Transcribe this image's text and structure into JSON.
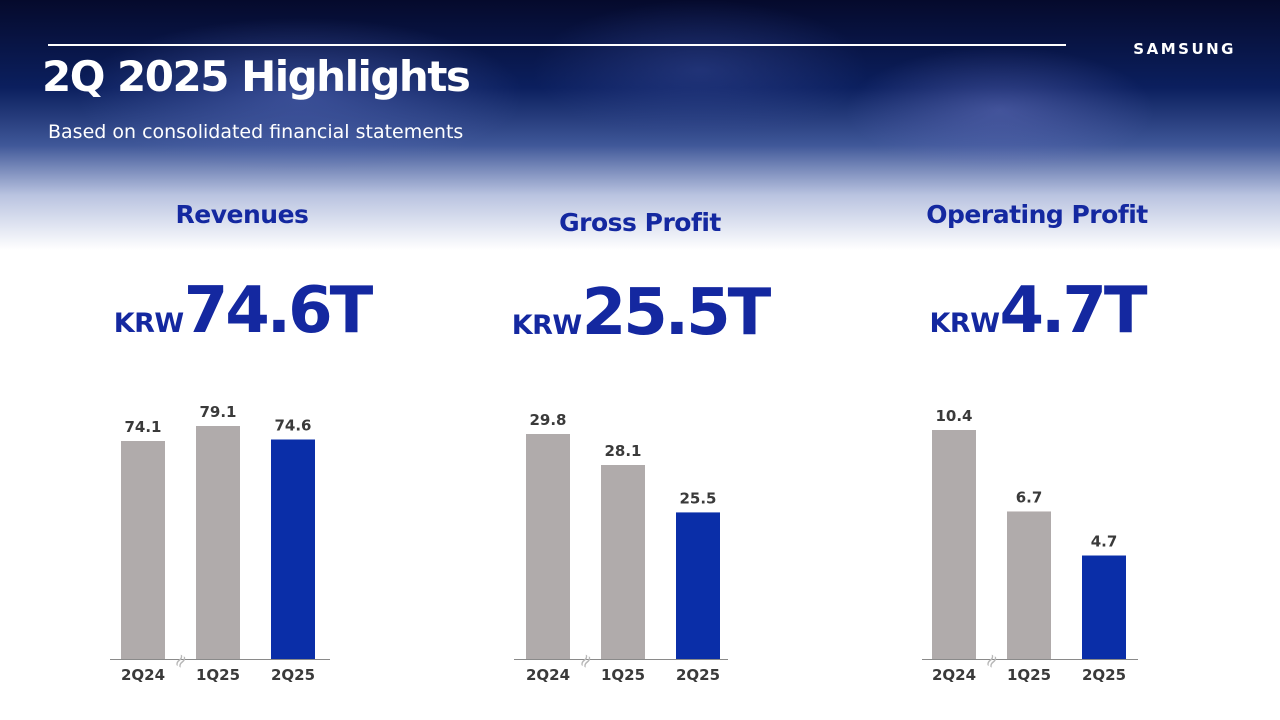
{
  "header": {
    "title": "2Q 2025 Highlights",
    "subtitle": "Based on consolidated financial statements",
    "logo": "SAMSUNG"
  },
  "colors": {
    "accent": "#0a2ea8",
    "bar_gray": "#b0abab",
    "title_blue": "#1428a0"
  },
  "kpis": [
    {
      "label": "Revenues",
      "unit": "KRW",
      "value": "74.6T"
    },
    {
      "label": "Gross Profit",
      "unit": "KRW",
      "value": "25.5T"
    },
    {
      "label": "Operating Profit",
      "unit": "KRW",
      "value": "4.7T"
    }
  ],
  "axis_break_symbol": "≈",
  "chart_data": [
    {
      "type": "bar",
      "title": "Revenues",
      "categories": [
        "2Q24",
        "1Q25",
        "2Q25"
      ],
      "values": [
        74.1,
        79.1,
        74.6
      ],
      "data_labels": [
        "74.1",
        "79.1",
        "74.6"
      ],
      "highlight_index": 2,
      "axis_break": "between 2Q24 and 1Q25",
      "grid": false,
      "legend": "none"
    },
    {
      "type": "bar",
      "title": "Gross Profit",
      "categories": [
        "2Q24",
        "1Q25",
        "2Q25"
      ],
      "values": [
        29.8,
        28.1,
        25.5
      ],
      "data_labels": [
        "29.8",
        "28.1",
        "25.5"
      ],
      "highlight_index": 2,
      "axis_break": "between 2Q24 and 1Q25",
      "grid": false,
      "legend": "none"
    },
    {
      "type": "bar",
      "title": "Operating Profit",
      "categories": [
        "2Q24",
        "1Q25",
        "2Q25"
      ],
      "values": [
        10.4,
        6.7,
        4.7
      ],
      "data_labels": [
        "10.4",
        "6.7",
        "4.7"
      ],
      "highlight_index": 2,
      "axis_break": "between 2Q24 and 1Q25",
      "grid": false,
      "legend": "none"
    }
  ]
}
